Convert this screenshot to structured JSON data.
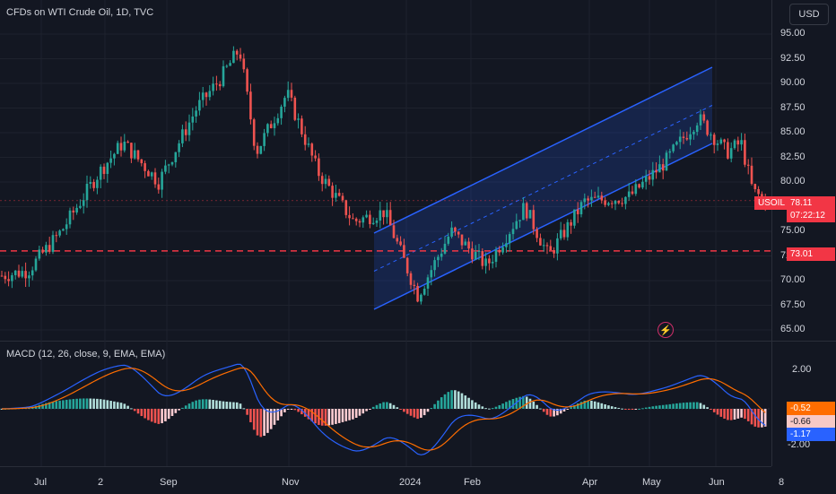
{
  "header": {
    "title": "CFDs on WTI Crude Oil, 1D, TVC",
    "currency_button": "USD"
  },
  "macd": {
    "title": "MACD (12, 26, close, 9, EMA, EMA)"
  },
  "price_axis": {
    "ticks": [
      "95.00",
      "92.50",
      "90.00",
      "87.50",
      "85.00",
      "82.50",
      "80.00",
      "77.50",
      "75.00",
      "72.50",
      "70.00",
      "67.50",
      "65.00"
    ]
  },
  "macd_axis": {
    "ticks": [
      "2.00",
      "-2.00"
    ]
  },
  "time_axis": {
    "ticks": [
      "Jul",
      "2",
      "Sep",
      "Nov",
      "2024",
      "Feb",
      "Apr",
      "May",
      "Jun",
      "8"
    ]
  },
  "tags": {
    "symbol_label": "USOIL",
    "last_price": "78.11",
    "countdown": "07:22:12",
    "support_level": "73.01",
    "macd_histogram": "-0.52",
    "macd_signal": "-0.66",
    "macd_line": "-1.17"
  },
  "icons": {
    "snapshot": "lightning-icon"
  },
  "colors": {
    "background": "#131722",
    "up_candle": "#26a69a",
    "down_candle": "#ef5350",
    "channel": "#2962ff",
    "support_line": "#f23645",
    "macd_line": "#2962ff",
    "signal_line": "#ff6d00"
  },
  "chart_data": [
    {
      "type": "candlestick",
      "title": "CFDs on WTI Crude Oil, 1D, TVC",
      "ylim": [
        65.0,
        95.0
      ],
      "x_ticks": [
        "Jul",
        "2",
        "Sep",
        "Nov",
        "2024",
        "Feb",
        "Apr",
        "May",
        "Jun",
        "8"
      ],
      "annotations": {
        "horizontal_line": 73.01,
        "last_price": 78.11,
        "rising_channel": true
      },
      "close_path": [
        {
          "x": "2023-06-20",
          "y": 70.5
        },
        {
          "x": "2023-07-01",
          "y": 71.0
        },
        {
          "x": "2023-07-15",
          "y": 75.0
        },
        {
          "x": "2023-07-31",
          "y": 81.0
        },
        {
          "x": "2023-08-10",
          "y": 84.0
        },
        {
          "x": "2023-08-25",
          "y": 80.0
        },
        {
          "x": "2023-09-10",
          "y": 87.5
        },
        {
          "x": "2023-09-20",
          "y": 90.5
        },
        {
          "x": "2023-09-28",
          "y": 93.5
        },
        {
          "x": "2023-10-05",
          "y": 83.0
        },
        {
          "x": "2023-10-18",
          "y": 89.0
        },
        {
          "x": "2023-10-31",
          "y": 81.0
        },
        {
          "x": "2023-11-15",
          "y": 76.0
        },
        {
          "x": "2023-11-28",
          "y": 77.0
        },
        {
          "x": "2023-12-12",
          "y": 68.5
        },
        {
          "x": "2023-12-26",
          "y": 75.0
        },
        {
          "x": "2024-01-10",
          "y": 71.5
        },
        {
          "x": "2024-01-26",
          "y": 77.5
        },
        {
          "x": "2024-02-05",
          "y": 72.5
        },
        {
          "x": "2024-02-20",
          "y": 78.0
        },
        {
          "x": "2024-03-10",
          "y": 78.5
        },
        {
          "x": "2024-03-25",
          "y": 82.0
        },
        {
          "x": "2024-04-08",
          "y": 86.5
        },
        {
          "x": "2024-04-20",
          "y": 83.0
        },
        {
          "x": "2024-04-26",
          "y": 84.0
        },
        {
          "x": "2024-05-01",
          "y": 79.0
        },
        {
          "x": "2024-05-07",
          "y": 78.11
        }
      ]
    },
    {
      "type": "line",
      "title": "MACD (12, 26, close, 9, EMA, EMA)",
      "ylim": [
        -2.8,
        2.8
      ],
      "series": [
        {
          "name": "MACD",
          "last": -1.17
        },
        {
          "name": "Signal",
          "last": -0.66
        },
        {
          "name": "Histogram",
          "last": -0.52
        }
      ]
    }
  ]
}
